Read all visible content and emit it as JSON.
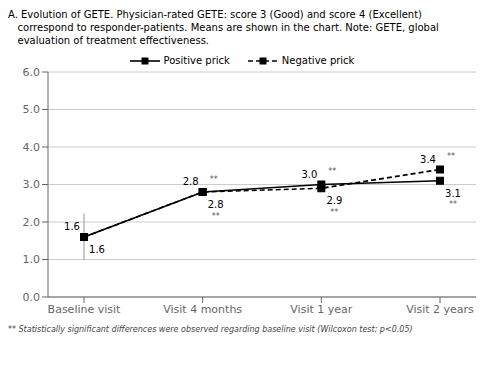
{
  "chart_data": {
    "type": "line",
    "title": [
      "A. Evolution of GETE. Physician-rated GETE: score 3 (Good) and score 4 (Excellent)",
      "   correspond to responder-patients. Means are shown in the chart. Note: GETE, global",
      "   evaluation of treatment effectiveness."
    ],
    "categories": [
      "Baseline visit",
      "Visit 4 months",
      "Visit 1 year",
      "Visit 2 years"
    ],
    "series": [
      {
        "name": "Positive prick",
        "color": "#000000",
        "line_style": "solid",
        "marker": "square",
        "values": [
          1.6,
          2.8,
          3.0,
          3.1
        ],
        "value_labels": [
          "1.6",
          "2.8",
          "3.0",
          "3.1"
        ],
        "error_low": [
          0.62,
          null,
          null,
          null
        ],
        "error_high": [
          0.62,
          null,
          null,
          null
        ]
      },
      {
        "name": "Negative prick",
        "color": "#000000",
        "line_style": "dashed",
        "marker": "square",
        "values": [
          1.6,
          2.8,
          2.9,
          3.4
        ],
        "value_labels": [
          "1.6",
          "2.8",
          "2.9",
          "3.4"
        ]
      }
    ],
    "annotations": [
      {
        "text": "**",
        "series": "Positive prick",
        "category": "Visit 4 months"
      },
      {
        "text": "**",
        "series": "Positive prick",
        "category": "Visit 1 year"
      },
      {
        "text": "**",
        "series": "Positive prick",
        "category": "Visit 2 years"
      },
      {
        "text": "**",
        "series": "Negative prick",
        "category": "Visit 4 months"
      },
      {
        "text": "**",
        "series": "Negative prick",
        "category": "Visit 1 year"
      },
      {
        "text": "**",
        "series": "Negative prick",
        "category": "Visit 2 years"
      }
    ],
    "footnote": "** Statistically significant differences were observed regarding baseline visit (Wilcoxon test; p<0.05)",
    "ylim": [
      0,
      6
    ],
    "yticks": [
      {
        "value": 0,
        "label": "0.0"
      },
      {
        "value": 1,
        "label": "1.0"
      },
      {
        "value": 2,
        "label": "2.0"
      },
      {
        "value": 3,
        "label": "3.0"
      },
      {
        "value": 4,
        "label": "4.0"
      },
      {
        "value": 5,
        "label": "5.0"
      },
      {
        "value": 6,
        "label": "6.0"
      }
    ],
    "grid": true,
    "legend": "top",
    "data_labels": true
  }
}
